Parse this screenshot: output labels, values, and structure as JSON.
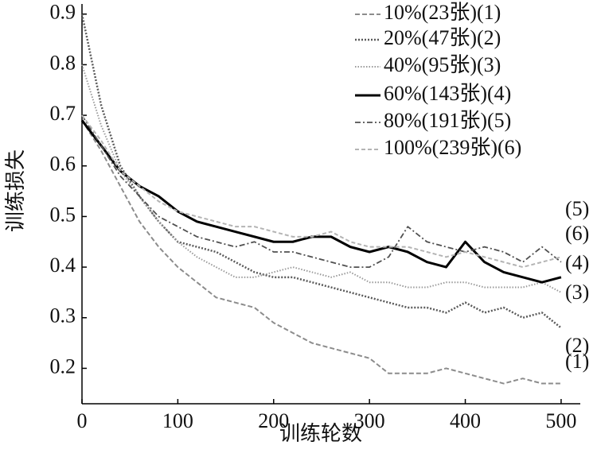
{
  "chart_data": {
    "type": "line",
    "x_label": "训练轮数",
    "y_label": "训练损失",
    "x": [
      0,
      20,
      40,
      60,
      80,
      100,
      120,
      140,
      160,
      180,
      200,
      220,
      240,
      260,
      280,
      300,
      320,
      340,
      360,
      380,
      400,
      420,
      440,
      460,
      480,
      500
    ],
    "xlim": [
      0,
      520
    ],
    "ylim": [
      0.13,
      0.92
    ],
    "xticks": [
      0,
      100,
      200,
      300,
      400,
      500
    ],
    "yticks": [
      0.2,
      0.3,
      0.4,
      0.5,
      0.6,
      0.7,
      0.8,
      0.9
    ],
    "legend": "upper right",
    "series": [
      {
        "name": "10%(23张)(1)",
        "label": "(1)",
        "color": "#8c8c8c",
        "values": [
          0.69,
          0.63,
          0.56,
          0.49,
          0.44,
          0.4,
          0.37,
          0.34,
          0.33,
          0.32,
          0.29,
          0.27,
          0.25,
          0.24,
          0.23,
          0.22,
          0.19,
          0.19,
          0.19,
          0.2,
          0.19,
          0.18,
          0.17,
          0.18,
          0.17,
          0.17
        ]
      },
      {
        "name": "20%(47张)(2)",
        "label": "(2)",
        "color": "#5a5a5a",
        "values": [
          0.9,
          0.72,
          0.6,
          0.54,
          0.49,
          0.45,
          0.44,
          0.43,
          0.41,
          0.39,
          0.38,
          0.38,
          0.37,
          0.36,
          0.35,
          0.34,
          0.33,
          0.32,
          0.32,
          0.31,
          0.33,
          0.31,
          0.32,
          0.3,
          0.31,
          0.28
        ]
      },
      {
        "name": "40%(95张)(3)",
        "label": "(3)",
        "color": "#9a9a9a",
        "values": [
          0.8,
          0.68,
          0.59,
          0.54,
          0.49,
          0.45,
          0.42,
          0.4,
          0.38,
          0.38,
          0.39,
          0.4,
          0.39,
          0.38,
          0.39,
          0.37,
          0.37,
          0.36,
          0.36,
          0.37,
          0.37,
          0.36,
          0.36,
          0.36,
          0.37,
          0.35
        ]
      },
      {
        "name": "60%(143张)(4)",
        "label": "(4)",
        "color": "#000000",
        "values": [
          0.69,
          0.64,
          0.59,
          0.56,
          0.54,
          0.51,
          0.49,
          0.48,
          0.47,
          0.46,
          0.45,
          0.45,
          0.46,
          0.46,
          0.44,
          0.43,
          0.44,
          0.43,
          0.41,
          0.4,
          0.45,
          0.41,
          0.39,
          0.38,
          0.37,
          0.38
        ]
      },
      {
        "name": "80%(191张)(5)",
        "label": "(5)",
        "color": "#505050",
        "values": [
          0.7,
          0.64,
          0.58,
          0.54,
          0.5,
          0.48,
          0.46,
          0.45,
          0.44,
          0.45,
          0.43,
          0.43,
          0.42,
          0.41,
          0.4,
          0.4,
          0.42,
          0.48,
          0.45,
          0.44,
          0.43,
          0.44,
          0.43,
          0.41,
          0.44,
          0.41
        ]
      },
      {
        "name": "100%(239张)(6)",
        "label": "(6)",
        "color": "#b4b4b4",
        "values": [
          0.7,
          0.65,
          0.59,
          0.56,
          0.53,
          0.51,
          0.5,
          0.49,
          0.48,
          0.48,
          0.47,
          0.46,
          0.46,
          0.47,
          0.45,
          0.44,
          0.44,
          0.44,
          0.43,
          0.42,
          0.43,
          0.42,
          0.41,
          0.4,
          0.41,
          0.42
        ]
      }
    ]
  }
}
